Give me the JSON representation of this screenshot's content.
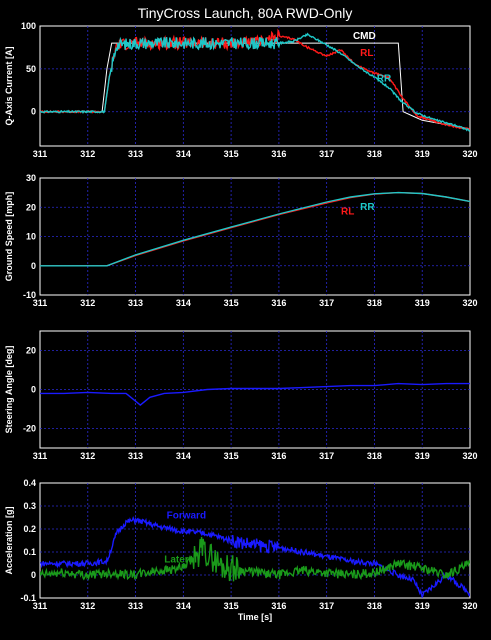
{
  "title": "TinyCross Launch, 80A RWD-Only",
  "chart_data": [
    {
      "type": "line",
      "ylabel": "Q-Axis Current [A]",
      "xlim": [
        311,
        320
      ],
      "ylim": [
        -40,
        100
      ],
      "yticks": [
        0,
        50,
        100
      ],
      "xticks": [
        311,
        312,
        313,
        314,
        315,
        316,
        317,
        318,
        319,
        320
      ],
      "series": [
        {
          "name": "CMD",
          "color": "#ffffff",
          "x": [
            311,
            312.3,
            312.4,
            312.5,
            318.5,
            318.6,
            318.8,
            319.0,
            320
          ],
          "y": [
            0,
            0,
            50,
            80,
            80,
            0,
            -5,
            -10,
            -20
          ]
        },
        {
          "name": "RL",
          "color": "#ff1a1a",
          "x": [
            311,
            312.35,
            312.45,
            312.6,
            313,
            313.5,
            314,
            314.5,
            315,
            315.5,
            316,
            316.3,
            316.6,
            317,
            317.3,
            317.6,
            318,
            318.3,
            318.6,
            318.9,
            319.3,
            319.7,
            320
          ],
          "y": [
            0,
            0,
            40,
            78,
            80,
            80,
            80,
            80,
            80,
            80,
            88,
            85,
            75,
            65,
            72,
            55,
            45,
            40,
            15,
            -5,
            -12,
            -18,
            -20
          ]
        },
        {
          "name": "RR",
          "color": "#1ec8c8",
          "x": [
            311,
            312.35,
            312.45,
            312.6,
            313,
            313.5,
            314,
            314.5,
            315,
            315.5,
            316,
            316.3,
            316.6,
            317,
            317.3,
            317.6,
            318,
            318.3,
            318.6,
            318.9,
            319.3,
            319.7,
            320
          ],
          "y": [
            0,
            0,
            40,
            78,
            80,
            80,
            80,
            80,
            80,
            80,
            80,
            82,
            90,
            78,
            68,
            55,
            40,
            28,
            10,
            -2,
            -10,
            -16,
            -22
          ]
        }
      ],
      "annotations": [
        {
          "text": "CMD",
          "color": "#ffffff",
          "x": 317.55,
          "y": 85
        },
        {
          "text": "RL",
          "color": "#ff1a1a",
          "x": 317.7,
          "y": 65
        },
        {
          "text": "RR",
          "color": "#1ec8c8",
          "x": 318.05,
          "y": 35
        }
      ]
    },
    {
      "type": "line",
      "ylabel": "Ground Speed [mph]",
      "xlim": [
        311,
        320
      ],
      "ylim": [
        -10,
        30
      ],
      "yticks": [
        -10,
        0,
        10,
        20,
        30
      ],
      "xticks": [
        311,
        312,
        313,
        314,
        315,
        316,
        317,
        318,
        319,
        320
      ],
      "series": [
        {
          "name": "RL",
          "color": "#ff1a1a",
          "x": [
            311,
            312.4,
            313,
            314,
            315,
            316,
            317,
            317.5,
            318,
            318.5,
            319,
            319.5,
            320
          ],
          "y": [
            0,
            0,
            3.5,
            8.5,
            13,
            17.5,
            21.5,
            23.3,
            24.5,
            25,
            24.7,
            23.5,
            22
          ]
        },
        {
          "name": "RR",
          "color": "#1ec8c8",
          "x": [
            311,
            312.4,
            313,
            314,
            315,
            316,
            317,
            317.5,
            318,
            318.5,
            319,
            319.5,
            320
          ],
          "y": [
            0,
            0,
            3.7,
            8.7,
            13.2,
            17.7,
            21.8,
            23.5,
            24.6,
            25,
            24.7,
            23.5,
            22
          ]
        }
      ],
      "annotations": [
        {
          "text": "RL",
          "color": "#ff1a1a",
          "x": 317.3,
          "y": 17.5
        },
        {
          "text": "RR",
          "color": "#1ec8c8",
          "x": 317.7,
          "y": 19
        }
      ]
    },
    {
      "type": "line",
      "ylabel": "Steering Angle [deg]",
      "xlim": [
        311,
        320
      ],
      "ylim": [
        -30,
        30
      ],
      "yticks": [
        -20,
        0,
        20
      ],
      "xticks": [
        311,
        312,
        313,
        314,
        315,
        316,
        317,
        318,
        319,
        320
      ],
      "series": [
        {
          "name": "",
          "color": "#1a1aff",
          "x": [
            311,
            311.5,
            312,
            312.5,
            312.8,
            313.0,
            313.1,
            313.3,
            313.6,
            314,
            314.5,
            315,
            315.5,
            316,
            316.5,
            317,
            317.5,
            318,
            318.5,
            319,
            319.5,
            320
          ],
          "y": [
            -2,
            -2,
            -1.5,
            -2,
            -2,
            -6,
            -8,
            -4,
            -2,
            -1.5,
            0,
            0.5,
            0.5,
            0.5,
            1,
            1.5,
            2,
            2,
            3,
            2.5,
            3,
            3
          ]
        }
      ]
    },
    {
      "type": "line",
      "ylabel": "Acceleration [g]",
      "xlabel": "Time [s]",
      "xlim": [
        311,
        320
      ],
      "ylim": [
        -0.1,
        0.4
      ],
      "yticks": [
        -0.1,
        0,
        0.1,
        0.2,
        0.3,
        0.4
      ],
      "xticks": [
        311,
        312,
        313,
        314,
        315,
        316,
        317,
        318,
        319,
        320
      ],
      "series": [
        {
          "name": "Forward",
          "color": "#1a1aff",
          "x": [
            311,
            311.5,
            312,
            312.4,
            312.6,
            312.8,
            313.0,
            313.5,
            314,
            314.5,
            315,
            315.5,
            316,
            316.5,
            317,
            317.5,
            318,
            318.5,
            318.8,
            319,
            319.5,
            320
          ],
          "y": [
            0.05,
            0.05,
            0.05,
            0.06,
            0.18,
            0.23,
            0.24,
            0.21,
            0.19,
            0.18,
            0.15,
            0.13,
            0.12,
            0.1,
            0.08,
            0.06,
            0.05,
            0.0,
            -0.02,
            -0.09,
            0.0,
            -0.08
          ]
        },
        {
          "name": "Lateral",
          "color": "#1a9a1a",
          "x": [
            311,
            311.5,
            312,
            312.5,
            313.0,
            313.5,
            314,
            314.4,
            314.8,
            315.2,
            315.6,
            316,
            316.5,
            317,
            317.5,
            318,
            318.5,
            319,
            319.5,
            320
          ],
          "y": [
            0.0,
            0.01,
            0.0,
            0.01,
            0.0,
            0.02,
            0.03,
            0.11,
            0.04,
            0.02,
            0.01,
            0.0,
            0.02,
            0.01,
            0.0,
            0.01,
            0.05,
            0.03,
            0.0,
            0.05
          ]
        }
      ],
      "annotations": [
        {
          "text": "Forward",
          "color": "#1a1aff",
          "x": 313.65,
          "y": 0.245
        },
        {
          "text": "Lateral",
          "color": "#1a9a1a",
          "x": 313.6,
          "y": 0.055
        }
      ]
    }
  ]
}
